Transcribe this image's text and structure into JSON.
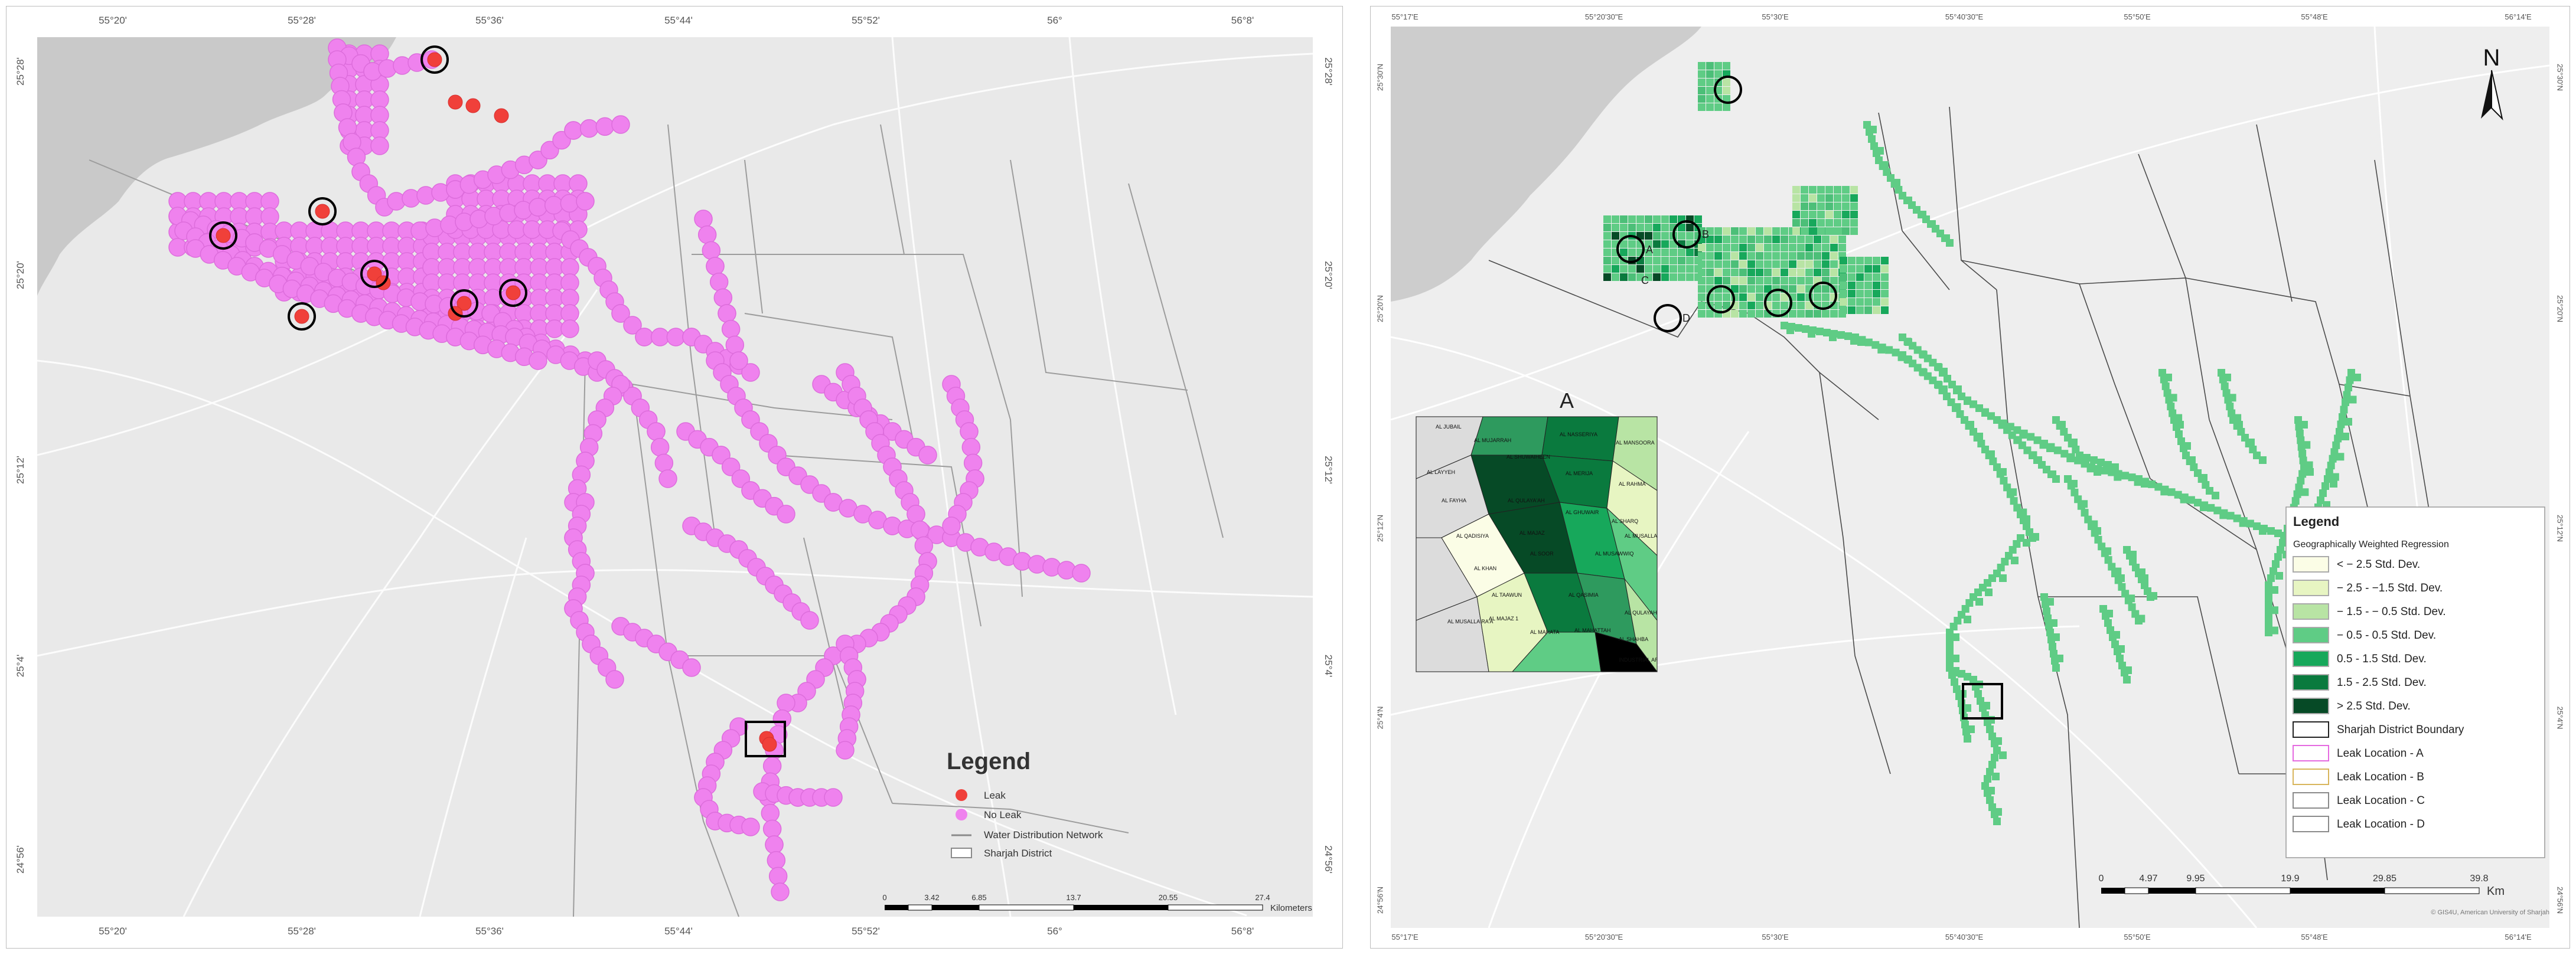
{
  "left_map": {
    "ticks_top": [
      "55°20'",
      "55°28'",
      "55°36'",
      "55°44'",
      "55°52'",
      "56°",
      "56°8'"
    ],
    "ticks_bottom": [
      "55°20'",
      "55°28'",
      "55°36'",
      "55°44'",
      "55°52'",
      "56°",
      "56°8'"
    ],
    "ticks_left": [
      "25°28'",
      "25°20'",
      "25°12'",
      "25°4'",
      "24°56'"
    ],
    "ticks_right": [
      "25°28'",
      "25°20'",
      "25°12'",
      "25°4'",
      "24°56'"
    ],
    "legend": {
      "title": "Legend",
      "items": [
        "Leak",
        "No Leak",
        "Water Distribution Network",
        "Sharjah District"
      ]
    },
    "scalebar": {
      "labels": [
        "0",
        "3.42",
        "6.85",
        "13.7",
        "20.55",
        "27.4"
      ],
      "unit": "Kilometers"
    },
    "colors": {
      "leak": "#f0403a",
      "no_leak": "#ef82ee",
      "background": "#e9e9e9",
      "sea": "#c9c9c9"
    }
  },
  "right_map": {
    "ticks_top": [
      "55°17'E",
      "55°20'30\"E",
      "55°30'E",
      "55°40'30\"E",
      "55°50'E",
      "55°48'E",
      "56°14'E"
    ],
    "ticks_bottom": [
      "55°17'E",
      "55°20'30\"E",
      "55°30'E",
      "55°40'30\"E",
      "55°50'E",
      "55°48'E",
      "56°14'E"
    ],
    "ticks_left": [
      "25°30'N",
      "25°20'N",
      "25°12'N",
      "25°4'N",
      "24°56'N"
    ],
    "ticks_right": [
      "25°30'N",
      "25°20'N",
      "25°12'N",
      "25°4'N",
      "24°56'N"
    ],
    "north_label": "N",
    "circle_labels": [
      "A",
      "B",
      "C",
      "D"
    ],
    "inset": {
      "label": "A",
      "place_names": [
        "AL JUBAIL",
        "AL MUJARRAH",
        "AL NASSERIYA",
        "AL MANSOORA",
        "AL LAYYEH",
        "AL SHUWAIHEEN",
        "AL MERIJA",
        "AL RAHMA",
        "AL FAYHA",
        "AL QULAYA'AH",
        "AL GHUWAIR",
        "AL SHARQ",
        "AL QADISIYA",
        "AL MAJAZ",
        "AL MUSALLA",
        "AL KHAN",
        "AL SOOR",
        "AL MUSAWWIQ",
        "AL TAAWUN",
        "AL QASIMIA",
        "AL MAJAZ 1",
        "AL MUSALLA RA'A",
        "AL MAHATA",
        "AL MAHATTAH",
        "AL QULAYAH",
        "AL SHAHBA",
        "INDUSTRIAL AREA 5"
      ]
    },
    "legend": {
      "title": "Legend",
      "subtitle": "Geographically Weighted Regression",
      "items": [
        "< − 2.5 Std. Dev.",
        "− 2.5 - −1.5 Std. Dev.",
        "− 1.5 - − 0.5 Std. Dev.",
        "− 0.5 - 0.5 Std. Dev.",
        "0.5 - 1.5 Std. Dev.",
        "1.5 - 2.5 Std. Dev.",
        "> 2.5 Std. Dev.",
        "Sharjah District Boundary",
        "Leak Location - A",
        "Leak Location - B",
        "Leak Location - C",
        "Leak Location - D"
      ],
      "swatches": [
        "#fbfde6",
        "#e7f5c2",
        "#b8e4a4",
        "#5fcc85",
        "#17a85b",
        "#0a7a3e",
        "#064a26",
        "#ffffff",
        "#ffffff",
        "#ffffff",
        "#ffffff",
        "#ffffff"
      ],
      "swatch_borders": [
        "#aaaaaa",
        "#aaaaaa",
        "#aaaaaa",
        "#aaaaaa",
        "#aaaaaa",
        "#aaaaaa",
        "#aaaaaa",
        "#222222",
        "#e56ae0",
        "#d8b55c",
        "#8a8a8a",
        "#8a8a8a"
      ]
    },
    "scalebar": {
      "labels": [
        "0",
        "4.97",
        "9.95",
        "19.9",
        "29.85",
        "39.8"
      ],
      "unit": "Km"
    },
    "credit": "© GIS4U, American University of Sharjah"
  }
}
